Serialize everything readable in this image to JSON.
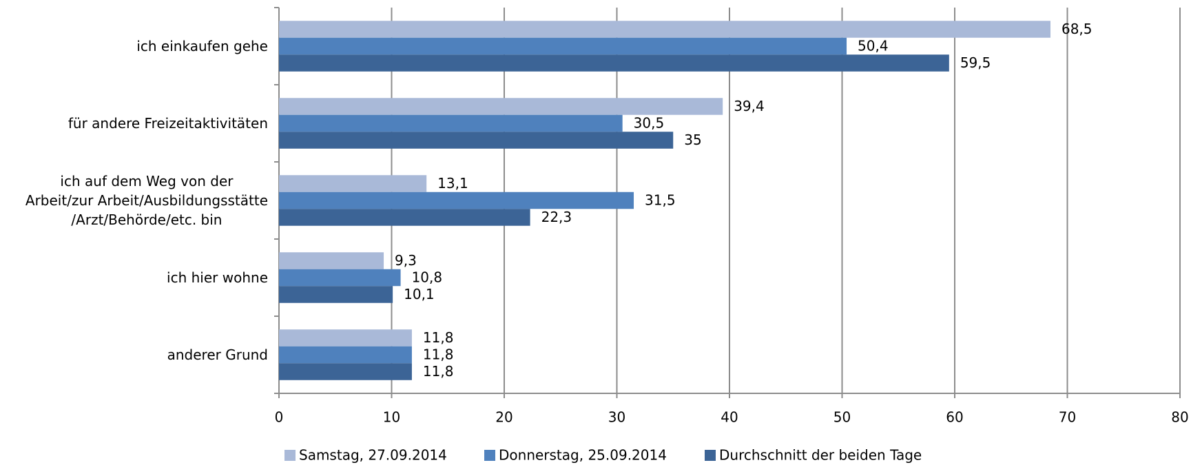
{
  "chart_data": {
    "type": "barh",
    "categories": [
      "ich einkaufen gehe",
      "für andere Freizeitaktivitäten",
      "ich auf dem Weg von der\nArbeit/zur Arbeit/Ausbildungsstätte\n/Arzt/Behörde/etc. bin",
      "ich hier wohne",
      "anderer Grund"
    ],
    "series": [
      {
        "name": "Samstag, 27.09.2014",
        "color": "#a9b9d8",
        "values": [
          68.5,
          39.4,
          13.1,
          9.3,
          11.8
        ],
        "value_labels": [
          "68,5",
          "39,4",
          "13,1",
          "9,3",
          "11,8"
        ]
      },
      {
        "name": "Donnerstag, 25.09.2014",
        "color": "#4f81bd",
        "values": [
          50.4,
          30.5,
          31.5,
          10.8,
          11.8
        ],
        "value_labels": [
          "50,4",
          "30,5",
          "31,5",
          "10,8",
          "11,8"
        ]
      },
      {
        "name": "Durchschnitt der beiden Tage",
        "color": "#3c6496",
        "values": [
          59.5,
          35,
          22.3,
          10.1,
          11.8
        ],
        "value_labels": [
          "59,5",
          "35",
          "22,3",
          "10,1",
          "11,8"
        ]
      }
    ],
    "xlim": [
      0,
      80
    ],
    "xticks": [
      0,
      10,
      20,
      30,
      40,
      50,
      60,
      70,
      80
    ],
    "grid": true,
    "legend": "bottom"
  }
}
